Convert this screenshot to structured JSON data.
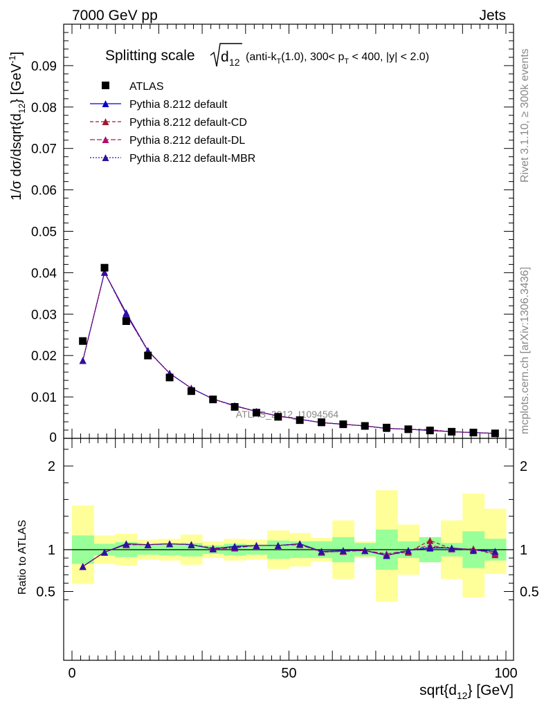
{
  "header": {
    "left": "7000 GeV pp",
    "right": "Jets"
  },
  "side_labels": {
    "rivet": "Rivet 3.1.10, ≥ 300k events",
    "mcplots": "mcplots.cern.ch [arXiv:1306.3436]"
  },
  "watermark": "ATLAS_2012_I1094564",
  "colors": {
    "data": "#000000",
    "default": "#0000cc",
    "cd": "#a01830",
    "dl": "#b0106a",
    "mbr": "#3010a0",
    "band_inner": "#99ff99",
    "band_outer": "#ffff99"
  },
  "chart_data": [
    {
      "type": "scatter",
      "title": "Splitting scale √d₁₂ (anti-k_T(1.0), 300< p_T < 400, |y| < 2.0)",
      "title_parts": {
        "main": "Splitting scale",
        "sub": "12",
        "rest": " (anti-k",
        "sub2": "T",
        "rest2": "(1.0), 300< p",
        "sub3": "T",
        "rest3": " < 400, |y| < 2.0)"
      },
      "ylabel": "1/σ dσ/dsqrt{d12} [GeV⁻¹]",
      "ylabel_parts": {
        "a": "1/σ dσ/dsqrt{d",
        "b": "12",
        "c": "} [GeV",
        "d": "-1",
        "e": "]"
      },
      "ylim": [
        0,
        0.1
      ],
      "yticks": [
        0.01,
        0.02,
        0.03,
        0.04,
        0.05,
        0.06,
        0.07,
        0.08,
        0.09
      ],
      "ytick_labels": [
        "0.01",
        "0.02",
        "0.03",
        "0.04",
        "0.05",
        "0.06",
        "0.07",
        "0.08",
        "0.09"
      ],
      "y_zero_label": "0",
      "xlim": [
        0,
        100
      ],
      "x": [
        2.5,
        7.5,
        12.5,
        17.5,
        22.5,
        27.5,
        32.5,
        37.5,
        42.5,
        47.5,
        52.5,
        57.5,
        62.5,
        67.5,
        72.5,
        77.5,
        82.5,
        87.5,
        92.5,
        97.5
      ],
      "legend_position": "top-left",
      "series": [
        {
          "name": "ATLAS",
          "key": "data",
          "values": [
            0.0235,
            0.0412,
            0.0283,
            0.02,
            0.0147,
            0.0114,
            0.0094,
            0.0076,
            0.0062,
            0.0052,
            0.0044,
            0.0039,
            0.0034,
            0.003,
            0.0026,
            0.0022,
            0.0019,
            0.0016,
            0.0014,
            0.0012
          ]
        },
        {
          "name": "Pythia 8.212 default",
          "key": "default",
          "values": [
            0.0188,
            0.0401,
            0.0303,
            0.0212,
            0.0157,
            0.0121,
            0.0095,
            0.0079,
            0.0065,
            0.0054,
            0.0046,
            0.0038,
            0.0034,
            0.003,
            0.0024,
            0.0022,
            0.0019,
            0.0016,
            0.0014,
            0.0012
          ]
        },
        {
          "name": "Pythia 8.212 default-CD",
          "key": "cd",
          "values": [
            0.0188,
            0.0401,
            0.0299,
            0.0211,
            0.0157,
            0.0121,
            0.0095,
            0.0078,
            0.0065,
            0.0054,
            0.0046,
            0.0038,
            0.0034,
            0.003,
            0.0024,
            0.0022,
            0.0021,
            0.0016,
            0.0014,
            0.0012
          ]
        },
        {
          "name": "Pythia 8.212 default-DL",
          "key": "dl",
          "values": [
            0.0188,
            0.0401,
            0.0299,
            0.0211,
            0.0157,
            0.0121,
            0.0095,
            0.0078,
            0.0065,
            0.0054,
            0.0046,
            0.0038,
            0.0034,
            0.003,
            0.0024,
            0.0022,
            0.002,
            0.0016,
            0.0014,
            0.0012
          ]
        },
        {
          "name": "Pythia 8.212 default-MBR",
          "key": "mbr",
          "values": [
            0.0188,
            0.0401,
            0.0301,
            0.0212,
            0.0157,
            0.0121,
            0.0095,
            0.0079,
            0.0065,
            0.0054,
            0.0046,
            0.0038,
            0.0034,
            0.003,
            0.0024,
            0.0022,
            0.0019,
            0.0016,
            0.0014,
            0.0012
          ]
        }
      ]
    },
    {
      "type": "line",
      "ylabel": "Ratio to ATLAS",
      "xlabel": "sqrt{d12} [GeV]",
      "xlabel_parts": {
        "a": "sqrt{d",
        "b": "12",
        "c": "} [GeV]"
      },
      "ylim": [
        0.35,
        2.3
      ],
      "yticks": [
        0.5,
        1,
        2
      ],
      "ytick_labels": [
        "0.5",
        "1",
        "2"
      ],
      "xlim": [
        -2.5,
        102
      ],
      "xticks": [
        0,
        50,
        100
      ],
      "xtick_labels": [
        "0",
        "50",
        "100"
      ],
      "x": [
        2.5,
        7.5,
        12.5,
        17.5,
        22.5,
        27.5,
        32.5,
        37.5,
        42.5,
        47.5,
        52.5,
        57.5,
        62.5,
        67.5,
        72.5,
        77.5,
        82.5,
        87.5,
        92.5,
        97.5
      ],
      "band_inner": {
        "lo": [
          0.83,
          0.93,
          0.91,
          0.94,
          0.93,
          0.92,
          0.95,
          0.93,
          0.94,
          0.89,
          0.9,
          0.9,
          0.85,
          0.92,
          0.76,
          0.9,
          0.85,
          0.92,
          0.78,
          0.87
        ],
        "hi": [
          1.17,
          1.07,
          1.09,
          1.06,
          1.07,
          1.08,
          1.05,
          1.07,
          1.06,
          1.11,
          1.1,
          1.1,
          1.15,
          1.08,
          1.24,
          1.1,
          1.15,
          1.08,
          1.22,
          1.13
        ]
      },
      "band_outer": {
        "lo": [
          0.59,
          0.83,
          0.81,
          0.88,
          0.87,
          0.82,
          0.9,
          0.87,
          0.88,
          0.77,
          0.8,
          0.86,
          0.65,
          0.9,
          0.38,
          0.7,
          0.88,
          0.65,
          0.43,
          0.71
        ],
        "hi": [
          1.53,
          1.17,
          1.19,
          1.12,
          1.13,
          1.18,
          1.1,
          1.13,
          1.12,
          1.23,
          1.2,
          1.14,
          1.35,
          1.1,
          1.71,
          1.3,
          1.12,
          1.35,
          1.67,
          1.49
        ]
      },
      "series": [
        {
          "name": "Pythia 8.212 default",
          "key": "default",
          "values": [
            0.8,
            0.97,
            1.07,
            1.06,
            1.07,
            1.06,
            1.01,
            1.04,
            1.05,
            1.05,
            1.07,
            0.98,
            0.99,
            0.99,
            0.93,
            0.99,
            1.02,
            1.02,
            1.0,
            0.98
          ]
        },
        {
          "name": "Pythia 8.212 default-CD",
          "key": "cd",
          "values": [
            0.8,
            0.97,
            1.06,
            1.06,
            1.07,
            1.06,
            1.02,
            1.03,
            1.05,
            1.05,
            1.07,
            0.97,
            0.98,
            0.99,
            0.94,
            0.97,
            1.11,
            1.01,
            1.01,
            0.94
          ]
        },
        {
          "name": "Pythia 8.212 default-DL",
          "key": "dl",
          "values": [
            0.8,
            0.97,
            1.06,
            1.06,
            1.07,
            1.06,
            1.01,
            1.02,
            1.05,
            1.05,
            1.06,
            0.97,
            0.98,
            0.99,
            0.95,
            0.99,
            1.05,
            1.01,
            1.0,
            0.96
          ]
        },
        {
          "name": "Pythia 8.212 default-MBR",
          "key": "mbr",
          "values": [
            0.8,
            0.97,
            1.07,
            1.06,
            1.07,
            1.06,
            1.01,
            1.03,
            1.05,
            1.05,
            1.07,
            0.98,
            0.99,
            0.99,
            0.93,
            0.99,
            1.03,
            1.02,
            0.99,
            0.98
          ]
        }
      ]
    }
  ]
}
